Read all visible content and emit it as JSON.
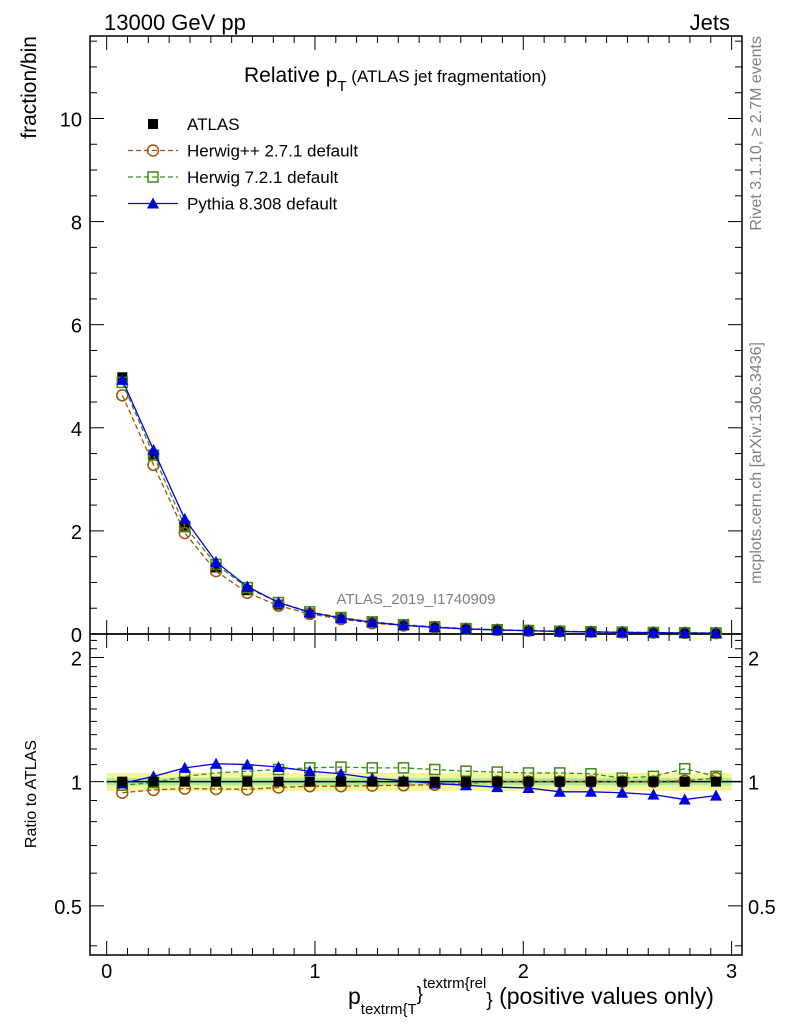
{
  "header": {
    "left": "13000 GeV pp",
    "right": "Jets"
  },
  "side_text": {
    "rivet": "Rivet 3.1.10, ≥ 2.7M events",
    "mcplots": "mcplots.cern.ch [arXiv:1306.3436]"
  },
  "main_panel": {
    "title_main": "Relative p",
    "title_sub": "T",
    "title_rest": " (ATLAS jet fragmentation)",
    "ylabel": "fraction/bin",
    "watermark": "ATLAS_2019_I1740909",
    "y_ticks": [
      "0",
      "2",
      "4",
      "6",
      "8",
      "10"
    ]
  },
  "ratio_panel": {
    "ylabel": "Ratio to ATLAS",
    "y_ticks": [
      "0.5",
      "1",
      "2"
    ]
  },
  "x_axis": {
    "label_p": "p",
    "label_sub": "textrm{T",
    "label_brace1": "}",
    "label_sup": "textrm{rel",
    "label_brace2": "}",
    "label_rest": " (positive values only)",
    "ticks": [
      "0",
      "1",
      "2",
      "3"
    ]
  },
  "legend": [
    {
      "name": "ATLAS",
      "color": "#000000",
      "marker": "filled-square",
      "line": "none"
    },
    {
      "name": "Herwig++ 2.7.1 default",
      "color": "#a0520a",
      "marker": "open-circle",
      "line": "dashed"
    },
    {
      "name": "Herwig 7.2.1 default",
      "color": "#3c8c14",
      "marker": "open-square",
      "line": "dashed"
    },
    {
      "name": "Pythia 8.308 default",
      "color": "#0000e0",
      "marker": "filled-triangle",
      "line": "solid"
    }
  ],
  "chart_data": {
    "type": "line",
    "x": [
      0.075,
      0.225,
      0.375,
      0.525,
      0.675,
      0.825,
      0.975,
      1.125,
      1.275,
      1.425,
      1.575,
      1.725,
      1.875,
      2.025,
      2.175,
      2.325,
      2.475,
      2.625,
      2.775,
      2.925
    ],
    "xlim": [
      -0.08,
      3.05
    ],
    "ylim": [
      0,
      11.6
    ],
    "series": [
      {
        "name": "ATLAS",
        "values": [
          4.98,
          3.48,
          2.07,
          1.29,
          0.85,
          0.57,
          0.4,
          0.3,
          0.22,
          0.17,
          0.13,
          0.1,
          0.08,
          0.065,
          0.052,
          0.042,
          0.034,
          0.028,
          0.022,
          0.018
        ]
      },
      {
        "name": "Herwig++ 2.7.1 default",
        "values": [
          4.63,
          3.28,
          1.96,
          1.22,
          0.8,
          0.55,
          0.39,
          0.29,
          0.21,
          0.165,
          0.13,
          0.1,
          0.08,
          0.064,
          0.051,
          0.041,
          0.033,
          0.027,
          0.022,
          0.018
        ]
      },
      {
        "name": "Herwig 7.2.1 default",
        "values": [
          4.88,
          3.47,
          2.09,
          1.35,
          0.9,
          0.61,
          0.43,
          0.32,
          0.235,
          0.18,
          0.14,
          0.105,
          0.083,
          0.068,
          0.054,
          0.044,
          0.035,
          0.029,
          0.024,
          0.019
        ]
      },
      {
        "name": "Pythia 8.308 default",
        "values": [
          4.93,
          3.57,
          2.23,
          1.4,
          0.92,
          0.61,
          0.42,
          0.31,
          0.225,
          0.17,
          0.13,
          0.098,
          0.077,
          0.063,
          0.049,
          0.04,
          0.032,
          0.026,
          0.02,
          0.017
        ]
      }
    ],
    "ratio": {
      "ylim": [
        0.38,
        2.28
      ],
      "scale": "log",
      "reference": "ATLAS",
      "series": [
        {
          "name": "Herwig++ 2.7.1 default",
          "values": [
            0.94,
            0.955,
            0.962,
            0.96,
            0.958,
            0.968,
            0.975,
            0.975,
            0.978,
            0.98,
            0.983,
            0.99,
            1.0,
            1.0,
            1.0,
            1.0,
            1.0,
            1.0,
            1.005,
            1.02
          ]
        },
        {
          "name": "Herwig 7.2.1 default",
          "values": [
            0.98,
            0.995,
            1.03,
            1.05,
            1.06,
            1.07,
            1.08,
            1.085,
            1.08,
            1.08,
            1.07,
            1.06,
            1.055,
            1.05,
            1.05,
            1.045,
            1.02,
            1.03,
            1.075,
            1.03
          ]
        },
        {
          "name": "Pythia 8.308 default",
          "values": [
            0.99,
            1.03,
            1.08,
            1.105,
            1.1,
            1.085,
            1.06,
            1.045,
            1.02,
            1.005,
            0.99,
            0.98,
            0.97,
            0.965,
            0.945,
            0.945,
            0.94,
            0.93,
            0.905,
            0.925
          ]
        }
      ],
      "band_inner_halfwidth": 0.02,
      "band_outer_halfwidth": 0.05
    }
  }
}
